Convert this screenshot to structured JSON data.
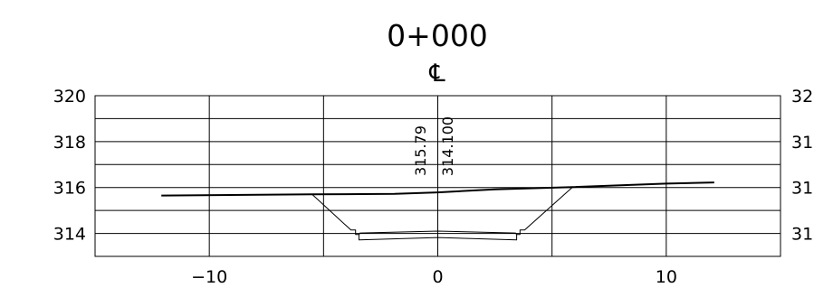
{
  "station_label": "0+000",
  "centerline_symbol": "℄",
  "axes": {
    "x": {
      "ticks": [
        -10,
        0,
        10
      ],
      "tick_labels": [
        "−10",
        "0",
        "10"
      ],
      "range": [
        -15,
        15
      ],
      "grid_step": 5
    },
    "y": {
      "ticks": [
        320,
        318,
        316,
        314
      ],
      "tick_labels": [
        "320",
        "318",
        "316",
        "314"
      ],
      "range": [
        313,
        320
      ],
      "grid_step": 1
    }
  },
  "annotations": {
    "ground_elevation": "315.79",
    "design_elevation": "314.100"
  },
  "chart_data": {
    "type": "line",
    "title": "0+000",
    "xlabel": "",
    "ylabel": "",
    "xlim": [
      -15,
      15
    ],
    "ylim": [
      313,
      320
    ],
    "grid": true,
    "series": [
      {
        "x": [
          -12.1,
          -5.5,
          -1.9,
          0,
          2.5,
          5.9,
          10.0,
          12.1
        ],
        "y": [
          315.65,
          315.7,
          315.72,
          315.79,
          315.92,
          316.02,
          316.17,
          316.22
        ]
      },
      {
        "x": [
          -5.5,
          -3.8,
          -3.6,
          -3.6,
          -3.45,
          -3.4,
          0,
          3.4,
          3.45,
          3.6,
          3.6,
          3.8,
          5.9
        ],
        "y": [
          315.7,
          314.15,
          314.15,
          313.95,
          313.95,
          314.02,
          314.1,
          314.02,
          313.95,
          313.95,
          314.15,
          314.15,
          316.02
        ]
      },
      {
        "x": [
          -3.45,
          -3.45,
          0,
          3.45,
          3.45
        ],
        "y": [
          313.95,
          313.72,
          313.82,
          313.72,
          313.95
        ]
      }
    ]
  }
}
